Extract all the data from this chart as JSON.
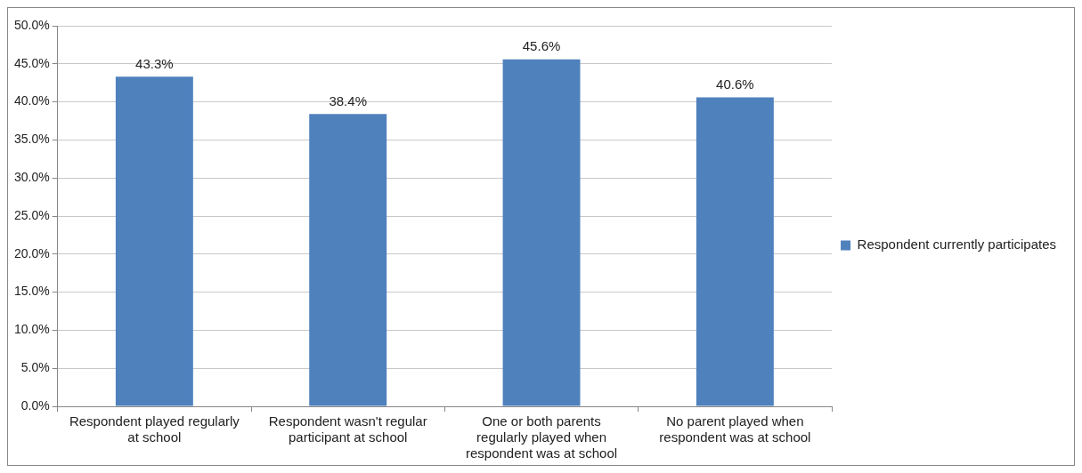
{
  "chart_data": {
    "type": "bar",
    "categories": [
      "Respondent played regularly at school",
      "Respondent wasn't regular participant at school",
      "One or both parents regularly played when respondent was at school",
      "No parent played when respondent was at school"
    ],
    "series": [
      {
        "name": "Respondent currently participates",
        "color": "#4f81bd",
        "values": [
          43.3,
          38.4,
          45.6,
          40.6
        ],
        "value_labels": [
          "43.3%",
          "38.4%",
          "45.6%",
          "40.6%"
        ]
      }
    ],
    "ylim": [
      0,
      50
    ],
    "yticks": [
      {
        "value": 0,
        "label": "0.0%"
      },
      {
        "value": 5,
        "label": "5.0%"
      },
      {
        "value": 10,
        "label": "10.0%"
      },
      {
        "value": 15,
        "label": "15.0%"
      },
      {
        "value": 20,
        "label": "20.0%"
      },
      {
        "value": 25,
        "label": "25.0%"
      },
      {
        "value": 30,
        "label": "30.0%"
      },
      {
        "value": 35,
        "label": "35.0%"
      },
      {
        "value": 40,
        "label": "40.0%"
      },
      {
        "value": 45,
        "label": "45.0%"
      },
      {
        "value": 50,
        "label": "50.0%"
      }
    ],
    "grid": "y",
    "legend": "right"
  }
}
